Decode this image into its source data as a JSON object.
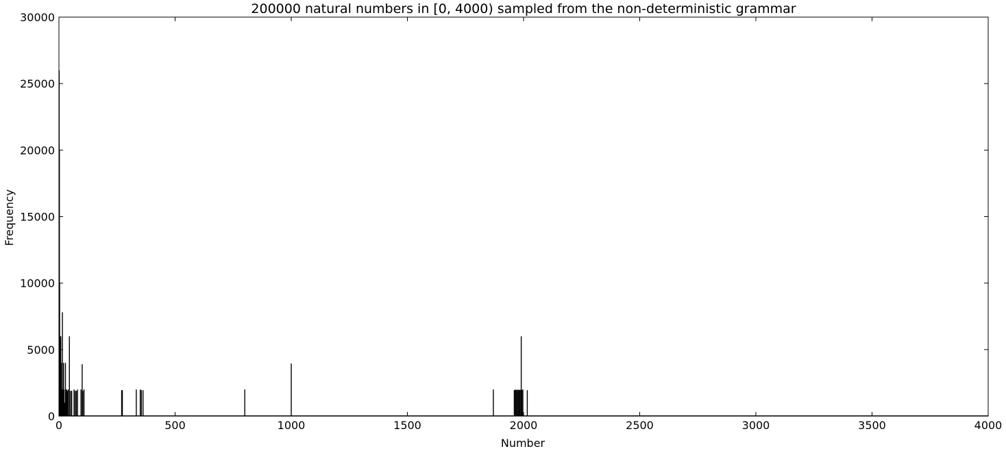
{
  "chart_data": {
    "type": "line",
    "title": "200000 natural numbers in [0, 4000) sampled from the non-deterministic grammar",
    "xlabel": "Number",
    "ylabel": "Frequency",
    "xlim": [
      0,
      4000
    ],
    "ylim": [
      0,
      30000
    ],
    "x_ticks": [
      0,
      500,
      1000,
      1500,
      2000,
      2500,
      3000,
      3500,
      4000
    ],
    "y_ticks": [
      0,
      5000,
      10000,
      15000,
      20000,
      25000,
      30000
    ],
    "grid": false,
    "line_color": "#000000",
    "series": [
      {
        "points": [
          [
            0,
            0
          ],
          [
            1,
            26000
          ],
          [
            2,
            20000
          ],
          [
            3,
            10000
          ],
          [
            4,
            6000
          ],
          [
            5,
            4000
          ],
          [
            6,
            2000
          ],
          [
            8,
            6000
          ],
          [
            10,
            4000
          ],
          [
            12,
            2000
          ],
          [
            15,
            7800
          ],
          [
            18,
            2000
          ],
          [
            20,
            4000
          ],
          [
            22,
            2000
          ],
          [
            25,
            1000
          ],
          [
            28,
            4000
          ],
          [
            30,
            2000
          ],
          [
            33,
            2000
          ],
          [
            36,
            1900
          ],
          [
            40,
            2000
          ],
          [
            45,
            6000
          ],
          [
            50,
            1900
          ],
          [
            55,
            1900
          ],
          [
            65,
            2000
          ],
          [
            70,
            1900
          ],
          [
            75,
            1900
          ],
          [
            80,
            2000
          ],
          [
            95,
            2000
          ],
          [
            100,
            3900
          ],
          [
            103,
            1900
          ],
          [
            108,
            2000
          ],
          [
            270,
            1950
          ],
          [
            273,
            1950
          ],
          [
            333,
            2000
          ],
          [
            350,
            2000
          ],
          [
            355,
            1950
          ],
          [
            362,
            1950
          ],
          [
            800,
            2000
          ],
          [
            1000,
            3950
          ],
          [
            1870,
            2000
          ],
          [
            1960,
            1950
          ],
          [
            1964,
            2000
          ],
          [
            1968,
            1950
          ],
          [
            1972,
            2000
          ],
          [
            1976,
            1950
          ],
          [
            1980,
            2000
          ],
          [
            1984,
            1950
          ],
          [
            1988,
            2000
          ],
          [
            1990,
            6000
          ],
          [
            1993,
            1950
          ],
          [
            1997,
            2000
          ],
          [
            2016,
            1950
          ]
        ]
      }
    ]
  }
}
